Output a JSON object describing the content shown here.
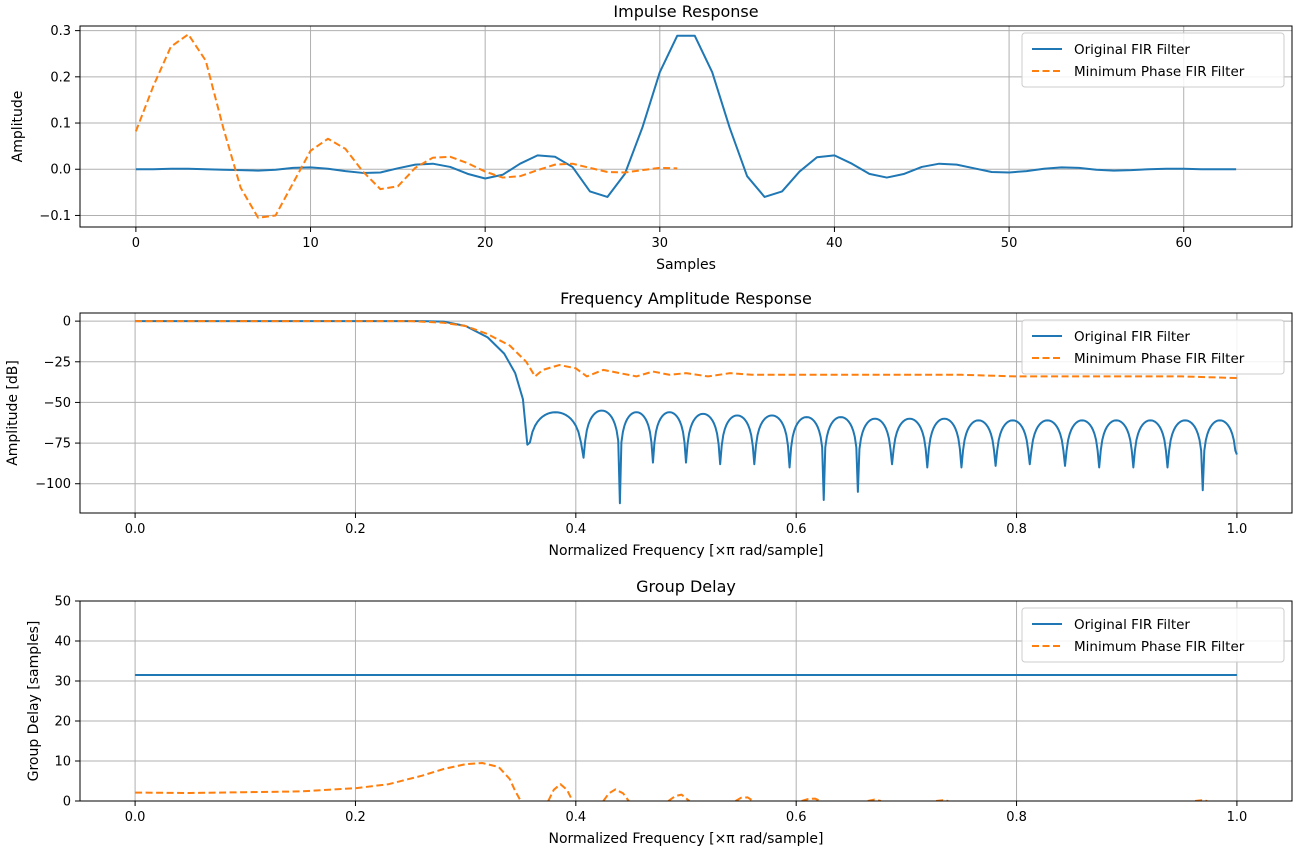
{
  "colors": {
    "original": "#1f77b4",
    "minphase": "#ff7f0e"
  },
  "chart_data": [
    {
      "type": "line",
      "title": "Impulse Response",
      "xlabel": "Samples",
      "ylabel": "Amplitude",
      "xlim": [
        -3.2,
        66.2
      ],
      "ylim": [
        -0.125,
        0.31
      ],
      "xticks": [
        0,
        10,
        20,
        30,
        40,
        50,
        60
      ],
      "xticklabels": [
        "0",
        "10",
        "20",
        "30",
        "40",
        "50",
        "60"
      ],
      "yticks": [
        -0.1,
        0.0,
        0.1,
        0.2,
        0.3
      ],
      "yticklabels": [
        "−0.1",
        "0.0",
        "0.1",
        "0.2",
        "0.3"
      ],
      "grid": true,
      "legend_position": "top-right",
      "series": [
        {
          "name": "Original FIR Filter",
          "style": "solid",
          "x": [
            0,
            1,
            2,
            3,
            4,
            5,
            6,
            7,
            8,
            9,
            10,
            11,
            12,
            13,
            14,
            15,
            16,
            17,
            18,
            19,
            20,
            21,
            22,
            23,
            24,
            25,
            26,
            27,
            28,
            29,
            30,
            31,
            32,
            33,
            34,
            35,
            36,
            37,
            38,
            39,
            40,
            41,
            42,
            43,
            44,
            45,
            46,
            47,
            48,
            49,
            50,
            51,
            52,
            53,
            54,
            55,
            56,
            57,
            58,
            59,
            60,
            61,
            62,
            63
          ],
          "y": [
            0,
            0,
            0.001,
            0.001,
            0,
            -0.001,
            -0.002,
            -0.003,
            -0.001,
            0.003,
            0.004,
            0.001,
            -0.004,
            -0.008,
            -0.007,
            0.002,
            0.01,
            0.012,
            0.005,
            -0.01,
            -0.02,
            -0.012,
            0.012,
            0.03,
            0.027,
            0.005,
            -0.048,
            -0.06,
            -0.01,
            0.09,
            0.21,
            0.289,
            0.289,
            0.21,
            0.09,
            -0.015,
            -0.06,
            -0.048,
            -0.005,
            0.026,
            0.03,
            0.012,
            -0.01,
            -0.018,
            -0.01,
            0.005,
            0.012,
            0.01,
            0.002,
            -0.006,
            -0.007,
            -0.004,
            0.001,
            0.004,
            0.003,
            -0.001,
            -0.003,
            -0.002,
            0,
            0.001,
            0.001,
            0,
            0,
            0
          ]
        },
        {
          "name": "Minimum Phase FIR Filter",
          "style": "dashed",
          "x": [
            0,
            1,
            2,
            3,
            4,
            5,
            6,
            7,
            8,
            9,
            10,
            11,
            12,
            13,
            14,
            15,
            16,
            17,
            18,
            19,
            20,
            21,
            22,
            23,
            24,
            25,
            26,
            27,
            28,
            29,
            30,
            31
          ],
          "y": [
            0.082,
            0.18,
            0.265,
            0.292,
            0.235,
            0.09,
            -0.04,
            -0.105,
            -0.1,
            -0.03,
            0.04,
            0.066,
            0.044,
            -0.005,
            -0.043,
            -0.037,
            0.003,
            0.025,
            0.027,
            0.013,
            -0.005,
            -0.018,
            -0.015,
            -0.002,
            0.01,
            0.012,
            0.003,
            -0.006,
            -0.007,
            -0.002,
            0.003,
            0.002
          ]
        }
      ]
    },
    {
      "type": "line",
      "title": "Frequency Amplitude Response",
      "xlabel": "Normalized Frequency [×π rad/sample]",
      "ylabel": "Amplitude [dB]",
      "xlim": [
        -0.05,
        1.05
      ],
      "ylim": [
        -118,
        5
      ],
      "xticks": [
        0.0,
        0.2,
        0.4,
        0.6,
        0.8,
        1.0
      ],
      "xticklabels": [
        "0.0",
        "0.2",
        "0.4",
        "0.6",
        "0.8",
        "1.0"
      ],
      "yticks": [
        0,
        -25,
        -50,
        -75,
        -100
      ],
      "yticklabels": [
        "0",
        "−25",
        "−50",
        "−75",
        "−100"
      ],
      "grid": true,
      "legend_position": "top-right",
      "passband_edge": 0.3,
      "stopband": {
        "nulls": [
          0.356,
          0.407,
          0.44,
          0.47,
          0.5,
          0.531,
          0.562,
          0.594,
          0.625,
          0.656,
          0.687,
          0.719,
          0.75,
          0.781,
          0.812,
          0.844,
          0.875,
          0.906,
          0.937,
          0.969,
          1.0
        ],
        "null_depths": [
          -76,
          -84,
          -112,
          -87,
          -87,
          -88,
          -88,
          -90,
          -110,
          -105,
          -88,
          -90,
          -90,
          -89,
          -88,
          -89,
          -90,
          -90,
          -90,
          -104,
          -82
        ],
        "lobe_peaks": [
          -56,
          -55,
          -56,
          -56,
          -57,
          -58,
          -58,
          -59,
          -59,
          -60,
          -60,
          -60,
          -61,
          -61,
          -61,
          -61,
          -61,
          -61,
          -61,
          -61
        ]
      },
      "series": [
        {
          "name": "Original FIR Filter",
          "style": "solid",
          "x": [
            0,
            0.2,
            0.26,
            0.28,
            0.3,
            0.32,
            0.335,
            0.345,
            0.352,
            0.356
          ],
          "y": [
            0,
            0,
            0,
            -0.3,
            -3,
            -10,
            -20,
            -32,
            -48,
            -76
          ]
        },
        {
          "name": "Minimum Phase FIR Filter",
          "style": "dashed",
          "x": [
            0,
            0.25,
            0.28,
            0.3,
            0.32,
            0.34,
            0.355,
            0.363,
            0.37,
            0.385,
            0.4,
            0.41,
            0.425,
            0.44,
            0.455,
            0.47,
            0.485,
            0.5,
            0.52,
            0.54,
            0.56,
            0.6,
            0.65,
            0.7,
            0.75,
            0.8,
            0.85,
            0.9,
            0.95,
            1.0
          ],
          "y": [
            0,
            0,
            -1,
            -3,
            -8,
            -15,
            -25,
            -34,
            -30,
            -27,
            -29,
            -34,
            -30,
            -32,
            -34,
            -31,
            -33,
            -32,
            -34,
            -32,
            -33,
            -33,
            -33,
            -33,
            -33,
            -34,
            -34,
            -34,
            -34,
            -35
          ]
        }
      ]
    },
    {
      "type": "line",
      "title": "Group Delay",
      "xlabel": "Normalized Frequency [×π rad/sample]",
      "ylabel": "Group Delay [samples]",
      "xlim": [
        -0.05,
        1.05
      ],
      "ylim": [
        0,
        50
      ],
      "xticks": [
        0.0,
        0.2,
        0.4,
        0.6,
        0.8,
        1.0
      ],
      "xticklabels": [
        "0.0",
        "0.2",
        "0.4",
        "0.6",
        "0.8",
        "1.0"
      ],
      "yticks": [
        0,
        10,
        20,
        30,
        40,
        50
      ],
      "yticklabels": [
        "0",
        "10",
        "20",
        "30",
        "40",
        "50"
      ],
      "grid": true,
      "legend_position": "top-right",
      "series": [
        {
          "name": "Original FIR Filter",
          "style": "solid",
          "x": [
            0,
            1.0
          ],
          "y": [
            31.5,
            31.5
          ]
        },
        {
          "name": "Minimum Phase FIR Filter",
          "style": "dashed",
          "segments": [
            {
              "x": [
                0,
                0.05,
                0.1,
                0.15,
                0.2,
                0.23,
                0.26,
                0.28,
                0.3,
                0.315,
                0.33,
                0.34,
                0.345,
                0.35
              ],
              "y": [
                2.1,
                2.0,
                2.2,
                2.4,
                3.2,
                4.2,
                6.3,
                8.0,
                9.2,
                9.5,
                8.5,
                5.5,
                2.5,
                0
              ]
            },
            {
              "x": [
                0.375,
                0.38,
                0.386,
                0.392,
                0.397
              ],
              "y": [
                0,
                2.8,
                4.2,
                2.8,
                0
              ]
            },
            {
              "x": [
                0.425,
                0.43,
                0.436,
                0.443,
                0.448
              ],
              "y": [
                0,
                1.9,
                2.9,
                1.9,
                0
              ]
            },
            {
              "x": [
                0.484,
                0.49,
                0.496,
                0.503
              ],
              "y": [
                0,
                1.2,
                1.6,
                0
              ]
            },
            {
              "x": [
                0.545,
                0.55,
                0.556,
                0.561
              ],
              "y": [
                0,
                0.8,
                0.9,
                0
              ]
            },
            {
              "x": [
                0.605,
                0.611,
                0.617,
                0.622
              ],
              "y": [
                0,
                0.5,
                0.6,
                0
              ]
            },
            {
              "x": [
                0.665,
                0.671,
                0.677
              ],
              "y": [
                0,
                0.35,
                0
              ]
            },
            {
              "x": [
                0.727,
                0.733,
                0.738
              ],
              "y": [
                0,
                0.2,
                0
              ]
            },
            {
              "x": [
                0.962,
                0.968,
                0.973
              ],
              "y": [
                0,
                0.2,
                0
              ]
            }
          ]
        }
      ]
    }
  ]
}
